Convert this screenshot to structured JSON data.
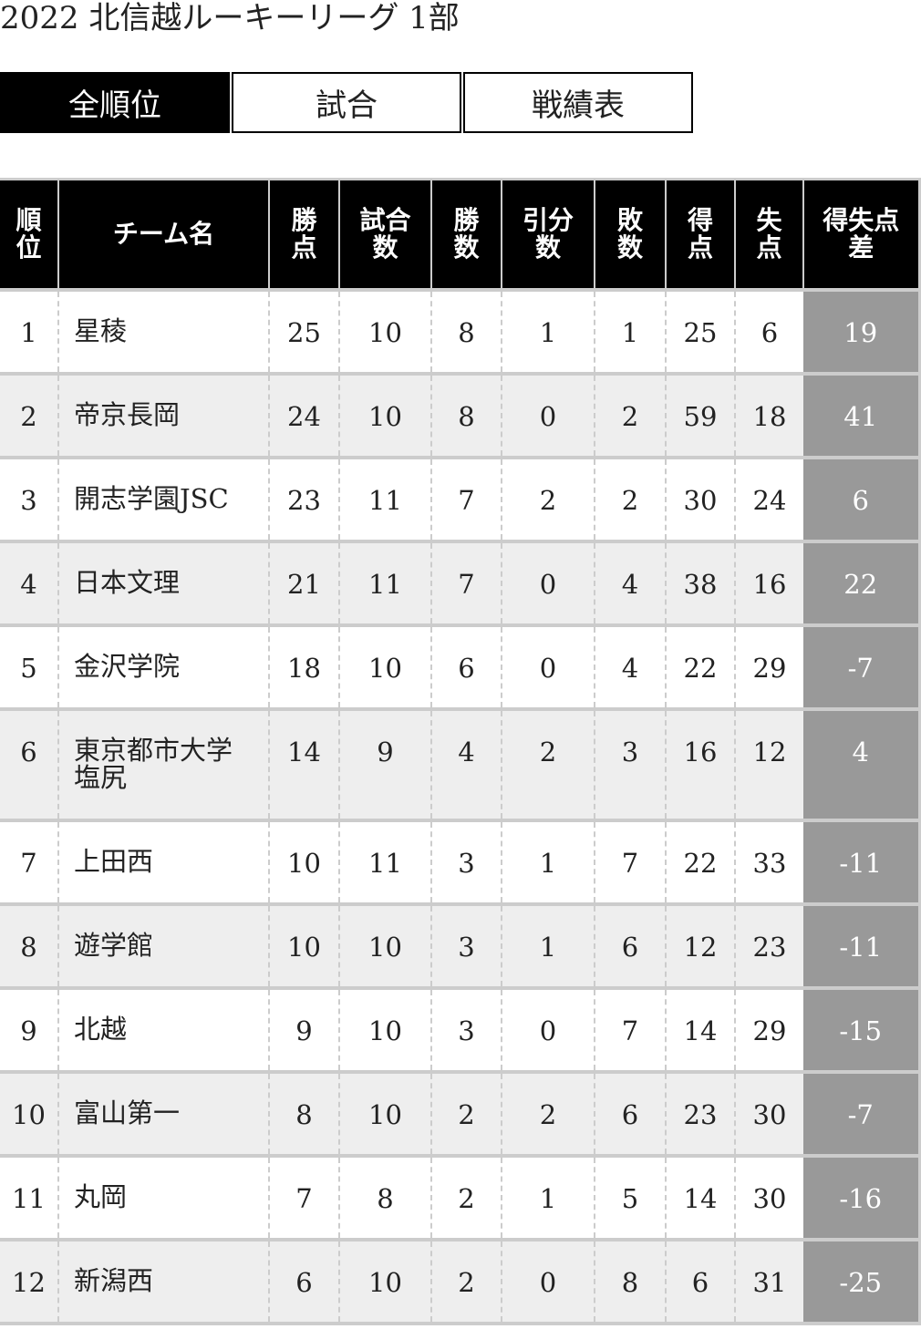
{
  "title": "2022 北信越ルーキーリーグ 1部",
  "tabs": [
    {
      "label": "全順位",
      "active": true
    },
    {
      "label": "試合",
      "active": false
    },
    {
      "label": "戦績表",
      "active": false
    }
  ],
  "headers": [
    "順\n位",
    "チーム名",
    "勝\n点",
    "試合\n数",
    "勝\n数",
    "引分\n数",
    "敗\n数",
    "得\n点",
    "失\n点",
    "得失点\n差"
  ],
  "rows": [
    [
      "1",
      "星稜",
      "25",
      "10",
      "8",
      "1",
      "1",
      "25",
      "6",
      "19"
    ],
    [
      "2",
      "帝京長岡",
      "24",
      "10",
      "8",
      "0",
      "2",
      "59",
      "18",
      "41"
    ],
    [
      "3",
      "開志学園JSC",
      "23",
      "11",
      "7",
      "2",
      "2",
      "30",
      "24",
      "6"
    ],
    [
      "4",
      "日本文理",
      "21",
      "11",
      "7",
      "0",
      "4",
      "38",
      "16",
      "22"
    ],
    [
      "5",
      "金沢学院",
      "18",
      "10",
      "6",
      "0",
      "4",
      "22",
      "29",
      "-7"
    ],
    [
      "6",
      "東京都市大学塩尻",
      "14",
      "9",
      "4",
      "2",
      "3",
      "16",
      "12",
      "4"
    ],
    [
      "7",
      "上田西",
      "10",
      "11",
      "3",
      "1",
      "7",
      "22",
      "33",
      "-11"
    ],
    [
      "8",
      "遊学館",
      "10",
      "10",
      "3",
      "1",
      "6",
      "12",
      "23",
      "-11"
    ],
    [
      "9",
      "北越",
      "9",
      "10",
      "3",
      "0",
      "7",
      "14",
      "29",
      "-15"
    ],
    [
      "10",
      "富山第一",
      "8",
      "10",
      "2",
      "2",
      "6",
      "23",
      "30",
      "-7"
    ],
    [
      "11",
      "丸岡",
      "7",
      "8",
      "2",
      "1",
      "5",
      "14",
      "30",
      "-16"
    ],
    [
      "12",
      "新潟西",
      "6",
      "10",
      "2",
      "0",
      "8",
      "6",
      "31",
      "-25"
    ]
  ],
  "colors": {
    "header_bg": "#000000",
    "diff_bg": "#999999",
    "alt_row": "#eeeeee"
  }
}
